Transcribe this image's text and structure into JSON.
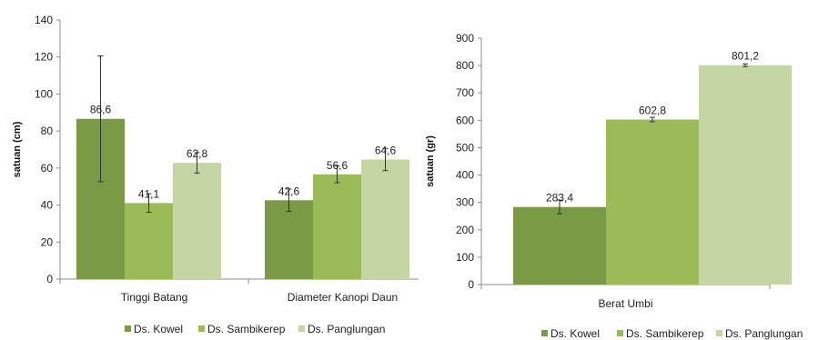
{
  "chart_data": [
    {
      "type": "bar",
      "title": "",
      "ylabel": "satuan (cm)",
      "xlabel": "",
      "ylim": [
        0,
        140
      ],
      "yticks": [
        "0",
        "20",
        "40",
        "60",
        "80",
        "100",
        "120",
        "140"
      ],
      "categories": [
        "Tinggi Batang",
        "Diameter Kanopi Daun"
      ],
      "series": [
        {
          "name": "Ds. Kowel",
          "color": "#7a9a45",
          "values": [
            86.6,
            42.6
          ],
          "labels": [
            "86,6",
            "42,6"
          ],
          "error": [
            34,
            6
          ]
        },
        {
          "name": "Ds. Sambikerep",
          "color": "#9bbb59",
          "values": [
            41.1,
            56.6
          ],
          "labels": [
            "41,1",
            "56,6"
          ],
          "error": [
            5,
            4.5
          ]
        },
        {
          "name": "Ds. Panglungan",
          "color": "#c4d6a3",
          "values": [
            62.8,
            64.6
          ],
          "labels": [
            "62,8",
            "64,6"
          ],
          "error": [
            5.5,
            6
          ]
        }
      ],
      "grid": false,
      "legend": "bottom"
    },
    {
      "type": "bar",
      "title": "",
      "ylabel": "satuan (gr)",
      "xlabel": "",
      "ylim": [
        0,
        900
      ],
      "yticks": [
        "0",
        "100",
        "200",
        "300",
        "400",
        "500",
        "600",
        "700",
        "800",
        "900"
      ],
      "categories": [
        "Berat Umbi"
      ],
      "series": [
        {
          "name": "Ds. Kowel",
          "color": "#7a9a45",
          "values": [
            283.4
          ],
          "labels": [
            "283,4"
          ],
          "error": [
            25
          ]
        },
        {
          "name": "Ds. Sambikerep",
          "color": "#9bbb59",
          "values": [
            602.8
          ],
          "labels": [
            "602,8"
          ],
          "error": [
            8
          ]
        },
        {
          "name": "Ds. Panglungan",
          "color": "#c4d6a3",
          "values": [
            801.2
          ],
          "labels": [
            "801,2"
          ],
          "error": [
            5
          ]
        }
      ],
      "grid": false,
      "legend": "bottom"
    }
  ]
}
